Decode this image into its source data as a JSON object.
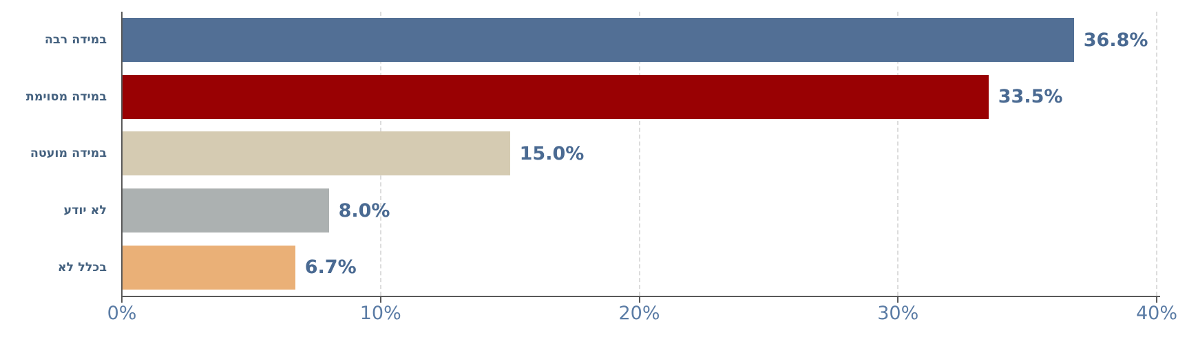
{
  "chart_data": {
    "type": "bar",
    "orientation": "horizontal",
    "title": "",
    "xlabel": "",
    "ylabel": "",
    "legend_position": "none",
    "categories": [
      "במידה רבה",
      "במידה מסוימת",
      "במידה מועטה",
      "לא יודע",
      "בכלל לא"
    ],
    "values": [
      36.8,
      33.5,
      15.0,
      8.0,
      6.7
    ],
    "value_labels": [
      "36.8%",
      "33.5%",
      "15.0%",
      "8.0%",
      "6.7%"
    ],
    "bar_colors": [
      "#526F95",
      "#990103",
      "#D5CBB2",
      "#ACB1B1",
      "#EAB077"
    ],
    "xlim": [
      0,
      40
    ],
    "x_ticks": [
      0,
      10,
      20,
      30,
      40
    ],
    "x_tick_labels": [
      "0%",
      "10%",
      "20%",
      "30%",
      "40%"
    ],
    "gridline_values": [
      10,
      20,
      30,
      40
    ],
    "grid_style": "vertical-dashed",
    "colors": {
      "value_label": "#4A6A92",
      "tick_label": "#5B7CA5",
      "category_label": "#44617F",
      "axis": "#595959",
      "gridline": "#DCDCDC",
      "background": "#FFFFFF"
    }
  }
}
